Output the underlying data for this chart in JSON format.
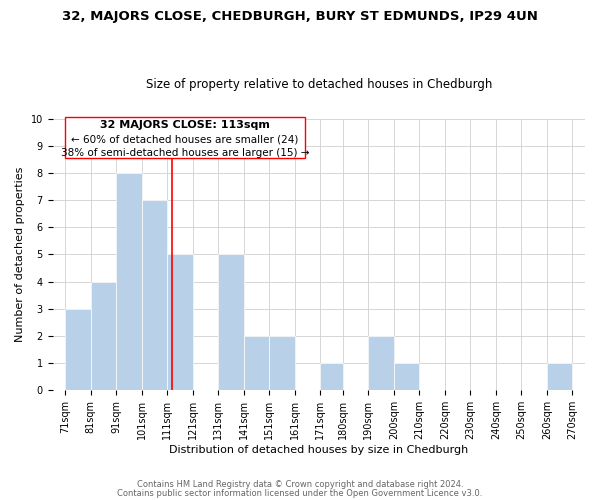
{
  "title": "32, MAJORS CLOSE, CHEDBURGH, BURY ST EDMUNDS, IP29 4UN",
  "subtitle": "Size of property relative to detached houses in Chedburgh",
  "xlabel": "Distribution of detached houses by size in Chedburgh",
  "ylabel": "Number of detached properties",
  "bar_color": "#b8d0e8",
  "bar_edge_color": "#ffffff",
  "red_line_x": 113,
  "annotation_line1": "32 MAJORS CLOSE: 113sqm",
  "annotation_line2": "← 60% of detached houses are smaller (24)",
  "annotation_line3": "38% of semi-detached houses are larger (15) →",
  "footer_line1": "Contains HM Land Registry data © Crown copyright and database right 2024.",
  "footer_line2": "Contains public sector information licensed under the Open Government Licence v3.0.",
  "bins": [
    71,
    81,
    91,
    101,
    111,
    121,
    131,
    141,
    151,
    161,
    171,
    180,
    190,
    200,
    210,
    220,
    230,
    240,
    250,
    260,
    270
  ],
  "heights": [
    3,
    4,
    8,
    7,
    5,
    0,
    5,
    2,
    2,
    0,
    1,
    0,
    2,
    1,
    0,
    0,
    0,
    0,
    0,
    1
  ],
  "ylim": [
    0,
    10
  ],
  "yticks": [
    0,
    1,
    2,
    3,
    4,
    5,
    6,
    7,
    8,
    9,
    10
  ],
  "background_color": "#ffffff",
  "grid_color": "#d0d0d0",
  "title_fontsize": 9.5,
  "subtitle_fontsize": 8.5,
  "axis_label_fontsize": 8,
  "tick_label_fontsize": 7,
  "annotation_fontsize": 8,
  "footer_fontsize": 6
}
